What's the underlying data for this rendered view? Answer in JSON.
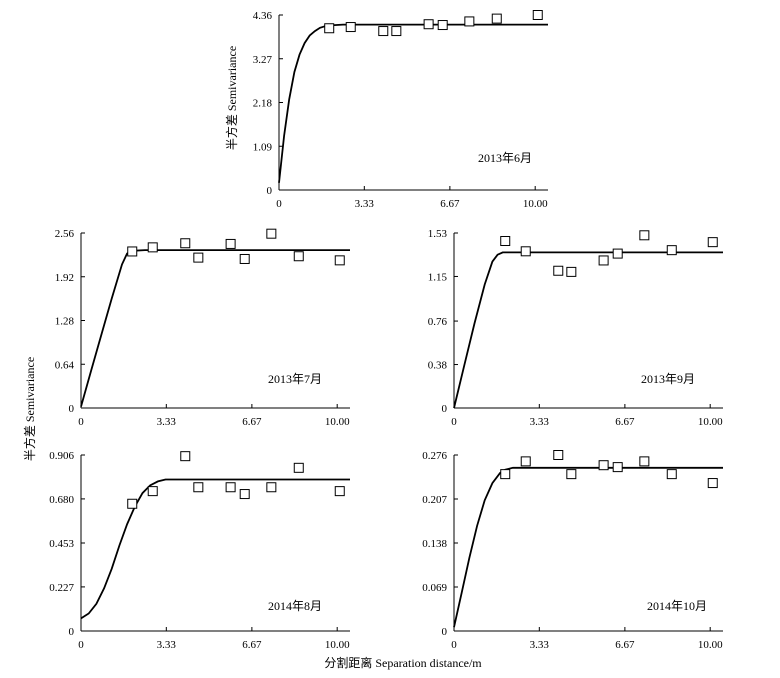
{
  "figure": {
    "ylabel_shared": "半方差 Semivariance",
    "xlabel_shared": "分割距离 Separation distance/m"
  },
  "chart_data": [
    {
      "type": "scatter",
      "label": "2013年6月",
      "ylabel": "半方差 Semivariance",
      "xticks": [
        "0",
        "3.33",
        "6.67",
        "10.00"
      ],
      "yticks": [
        "0",
        "1.09",
        "2.18",
        "3.27",
        "4.36"
      ],
      "xlim": [
        0,
        10.5
      ],
      "ylim": [
        0,
        4.36
      ],
      "points": {
        "x": [
          1.96,
          2.8,
          4.07,
          4.58,
          5.84,
          6.39,
          7.43,
          8.5,
          10.1
        ],
        "y": [
          4.03,
          4.06,
          3.96,
          3.96,
          4.13,
          4.11,
          4.2,
          4.27,
          4.36
        ]
      },
      "fit": {
        "x": [
          0,
          0.2,
          0.4,
          0.6,
          0.8,
          1.0,
          1.2,
          1.4,
          1.6,
          1.8,
          2.0,
          2.5,
          3.0,
          4.0,
          6.0,
          8.0,
          10.5
        ],
        "y": [
          0.18,
          1.35,
          2.26,
          2.94,
          3.37,
          3.66,
          3.85,
          3.96,
          4.04,
          4.08,
          4.1,
          4.12,
          4.12,
          4.12,
          4.12,
          4.12,
          4.12
        ]
      }
    },
    {
      "type": "scatter",
      "label": "2013年7月",
      "xticks": [
        "0",
        "3.33",
        "6.67",
        "10.00"
      ],
      "yticks": [
        "0",
        "0.64",
        "1.28",
        "1.92",
        "2.56"
      ],
      "xlim": [
        0,
        10.5
      ],
      "ylim": [
        0,
        2.56
      ],
      "points": {
        "x": [
          2.0,
          2.8,
          4.07,
          4.58,
          5.84,
          6.39,
          7.43,
          8.5,
          10.1
        ],
        "y": [
          2.29,
          2.35,
          2.41,
          2.2,
          2.4,
          2.18,
          2.55,
          2.22,
          2.16
        ]
      },
      "fit": {
        "x": [
          0,
          0.4,
          0.8,
          1.2,
          1.6,
          1.8,
          2.0,
          2.5,
          3.0,
          5.0,
          8.0,
          10.5
        ],
        "y": [
          0.02,
          0.55,
          1.08,
          1.6,
          2.1,
          2.26,
          2.3,
          2.31,
          2.31,
          2.31,
          2.31,
          2.31
        ]
      }
    },
    {
      "type": "scatter",
      "label": "2013年9月",
      "xticks": [
        "0",
        "3.33",
        "6.67",
        "10.00"
      ],
      "yticks": [
        "0",
        "0.38",
        "0.76",
        "1.15",
        "1.53"
      ],
      "xlim": [
        0,
        10.5
      ],
      "ylim": [
        0,
        1.53
      ],
      "points": {
        "x": [
          2.0,
          2.8,
          4.07,
          4.58,
          5.84,
          6.39,
          7.43,
          8.5,
          10.1
        ],
        "y": [
          1.46,
          1.37,
          1.2,
          1.19,
          1.29,
          1.35,
          1.51,
          1.38,
          1.45
        ]
      },
      "fit": {
        "x": [
          0,
          0.4,
          0.8,
          1.2,
          1.5,
          1.7,
          1.9,
          2.0,
          2.5,
          3.0,
          5.0,
          8.0,
          10.5
        ],
        "y": [
          0.0,
          0.37,
          0.74,
          1.08,
          1.28,
          1.34,
          1.36,
          1.36,
          1.36,
          1.36,
          1.36,
          1.36,
          1.36
        ]
      }
    },
    {
      "type": "scatter",
      "label": "2014年8月",
      "xticks": [
        "0",
        "3.33",
        "6.67",
        "10.00"
      ],
      "yticks": [
        "0",
        "0.227",
        "0.453",
        "0.680",
        "0.906"
      ],
      "xlim": [
        0,
        10.5
      ],
      "ylim": [
        0,
        0.906
      ],
      "points": {
        "x": [
          2.0,
          2.8,
          4.07,
          4.58,
          5.84,
          6.39,
          7.43,
          8.5,
          10.1
        ],
        "y": [
          0.655,
          0.72,
          0.9,
          0.74,
          0.74,
          0.705,
          0.74,
          0.84,
          0.72
        ]
      },
      "fit": {
        "x": [
          0,
          0.3,
          0.6,
          0.9,
          1.2,
          1.5,
          1.8,
          2.1,
          2.4,
          2.7,
          3.0,
          3.3,
          3.6,
          4.0,
          5.0,
          7.0,
          10.5
        ],
        "y": [
          0.065,
          0.09,
          0.14,
          0.22,
          0.32,
          0.44,
          0.55,
          0.64,
          0.71,
          0.75,
          0.77,
          0.78,
          0.78,
          0.78,
          0.78,
          0.78,
          0.78
        ]
      }
    },
    {
      "type": "scatter",
      "label": "2014年10月",
      "xticks": [
        "0",
        "3.33",
        "6.67",
        "10.00"
      ],
      "yticks": [
        "0",
        "0.069",
        "0.138",
        "0.207",
        "0.276"
      ],
      "xlim": [
        0,
        10.5
      ],
      "ylim": [
        0,
        0.276
      ],
      "points": {
        "x": [
          2.0,
          2.8,
          4.07,
          4.58,
          5.84,
          6.39,
          7.43,
          8.5,
          10.1
        ],
        "y": [
          0.246,
          0.266,
          0.276,
          0.246,
          0.26,
          0.257,
          0.266,
          0.246,
          0.232
        ]
      },
      "fit": {
        "x": [
          0,
          0.3,
          0.6,
          0.9,
          1.2,
          1.5,
          1.8,
          2.0,
          2.3,
          2.6,
          3.0,
          5.0,
          8.0,
          10.5
        ],
        "y": [
          0.006,
          0.06,
          0.115,
          0.165,
          0.205,
          0.232,
          0.248,
          0.253,
          0.256,
          0.256,
          0.256,
          0.256,
          0.256,
          0.256
        ]
      }
    }
  ]
}
